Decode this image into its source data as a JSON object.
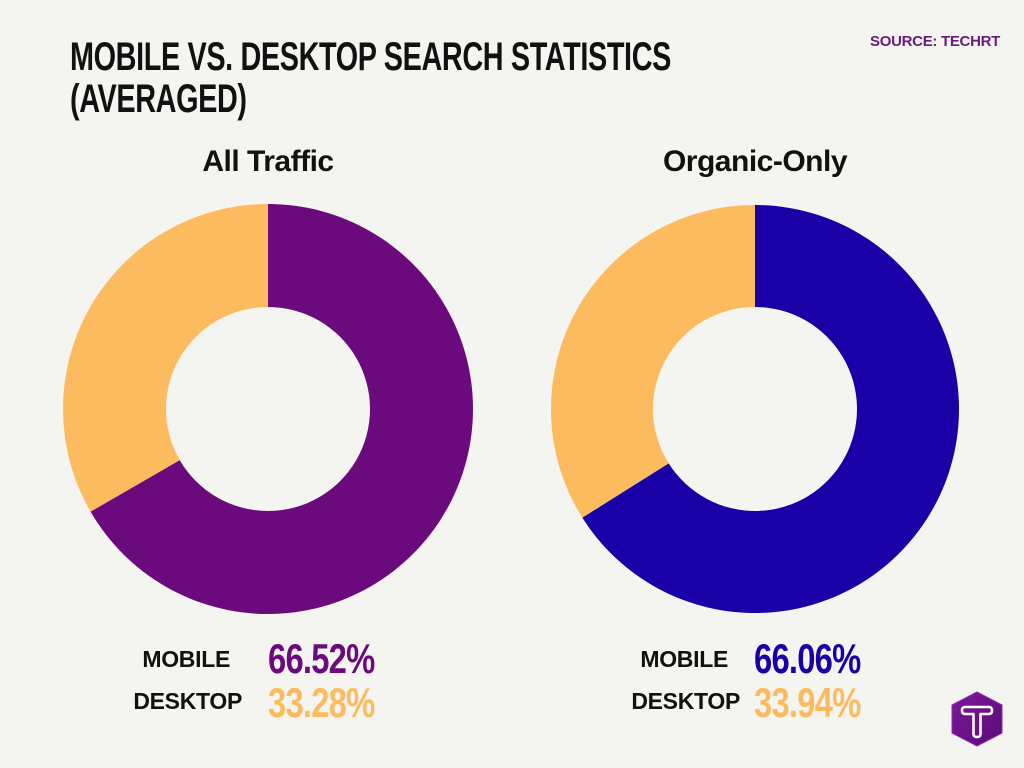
{
  "header": {
    "title": "MOBILE VS. DESKTOP SEARCH STATISTICS\n(AVERAGED)",
    "source": "SOURCE: TECHRT"
  },
  "colors": {
    "mobile_all": "#6b0a7d",
    "mobile_organic": "#1800a6",
    "desktop": "#fdbb5f",
    "background": "#f4f4f1"
  },
  "charts": [
    {
      "title": "All Traffic",
      "legend": [
        {
          "label": "MOBILE",
          "value": "66.52%"
        },
        {
          "label": "DESKTOP",
          "value": "33.28%"
        }
      ]
    },
    {
      "title": "Organic-Only",
      "legend": [
        {
          "label": "MOBILE",
          "value": "66.06%"
        },
        {
          "label": "DESKTOP",
          "value": "33.94%"
        }
      ]
    }
  ],
  "logo": {
    "icon": "techrt-t-hexagon-logo",
    "letter": "T"
  },
  "chart_data": [
    {
      "type": "pie",
      "subtype": "donut",
      "title": "All Traffic",
      "categories": [
        "Mobile",
        "Desktop"
      ],
      "values": [
        66.52,
        33.28
      ],
      "colors": [
        "#6b0a7d",
        "#fdbb5f"
      ],
      "start_angle": "12 o'clock, clockwise"
    },
    {
      "type": "pie",
      "subtype": "donut",
      "title": "Organic-Only",
      "categories": [
        "Mobile",
        "Desktop"
      ],
      "values": [
        66.06,
        33.94
      ],
      "colors": [
        "#1800a6",
        "#fdbb5f"
      ],
      "start_angle": "12 o'clock, clockwise"
    }
  ]
}
